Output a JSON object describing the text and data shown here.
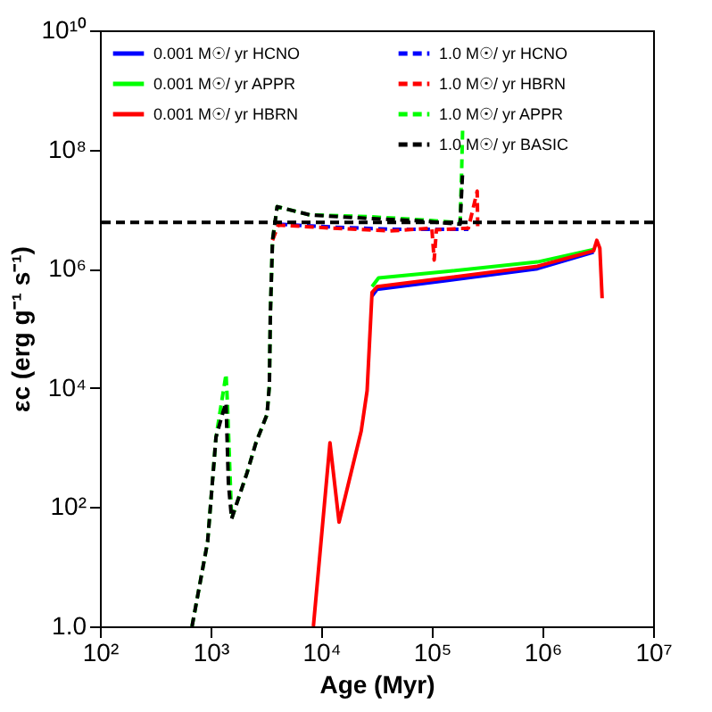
{
  "chart_data": {
    "type": "line",
    "xlabel": "Age (Myr)",
    "ylabel": "εc (erg g⁻¹ s⁻¹)",
    "log": "xy",
    "xlim": [
      100,
      10000000
    ],
    "ylim": [
      1,
      10000000000
    ],
    "xticks": [
      {
        "value": 100,
        "label": "10²"
      },
      {
        "value": 1000,
        "label": "10³"
      },
      {
        "value": 10000,
        "label": "10⁴"
      },
      {
        "value": 100000,
        "label": "10⁵"
      },
      {
        "value": 1000000,
        "label": "10⁶"
      },
      {
        "value": 10000000,
        "label": "10⁷"
      }
    ],
    "yticks": [
      {
        "value": 1,
        "label": "1.0"
      },
      {
        "value": 100,
        "label": "10²"
      },
      {
        "value": 10000,
        "label": "10⁴"
      },
      {
        "value": 1000000,
        "label": "10⁶"
      },
      {
        "value": 100000000,
        "label": "10⁸"
      },
      {
        "value": 10000000000,
        "label": "10¹⁰"
      }
    ],
    "grid": false,
    "legend": "top left",
    "series": [
      {
        "name": "0.001 M☉/ yr HCNO",
        "color": "#0000ff",
        "line_style": "solid",
        "x": [
          28800,
          32000,
          135000,
          900000,
          2900000
        ],
        "values": [
          350000,
          450000,
          630000,
          1000000,
          1900000
        ]
      },
      {
        "name": "0.001 M☉/ yr APPR",
        "color": "#00ff00",
        "line_style": "solid",
        "x": [
          28800,
          33000,
          135000,
          900000,
          2900000
        ],
        "values": [
          500000,
          700000,
          900000,
          1300000,
          2100000
        ]
      },
      {
        "name": "0.001 M☉/ yr HBRN",
        "color": "#ff0000",
        "line_style": "solid",
        "x": [
          8500,
          12000,
          14500,
          23000,
          26000,
          28800,
          32000,
          135000,
          900000,
          2900000,
          3100000,
          3300000,
          3460000
        ],
        "values": [
          1,
          1200,
          56,
          1900,
          9000,
          400000,
          500000,
          700000,
          1100000,
          2000000,
          3000000,
          2200000,
          320000
        ]
      },
      {
        "name": "1.0 M☉/ yr HCNO",
        "color": "#0000ff",
        "line_style": "dashed",
        "x": [
          4100,
          12600,
          42000,
          100000,
          214000
        ],
        "values": [
          5600000,
          5000000,
          4600000,
          4600000,
          4600000
        ]
      },
      {
        "name": "1.0 M☉/ yr HBRN",
        "color": "#ff0000",
        "line_style": "dashed",
        "x": [
          3630,
          4100,
          12600,
          42000,
          100000,
          105000,
          110000,
          214000,
          257000,
          260000
        ],
        "values": [
          3000000,
          5400000,
          4800000,
          4300000,
          4800000,
          1400000,
          4500000,
          4800000,
          20000000,
          4800000
        ]
      },
      {
        "name": "1.0 M☉/ yr APPR",
        "color": "#00ff00",
        "line_style": "dashed",
        "x": [
          680,
          940,
          1120,
          1380,
          1420,
          1550,
          2140,
          2570,
          3240,
          3400,
          3470,
          3630,
          4000,
          7900,
          26000,
          83000,
          180000,
          186000,
          190000
        ],
        "values": [
          1,
          26,
          1500,
          17000,
          5600,
          64,
          380,
          1200,
          3600,
          11000,
          170000,
          3000000,
          11000000,
          8000000,
          7500000,
          6600000,
          5900000,
          45000000,
          240000000
        ]
      },
      {
        "name": "1.0 M☉/ yr BASIC",
        "color": "#000000",
        "line_style": "dashed",
        "x": [
          680,
          940,
          1120,
          1300,
          1380,
          1450,
          1550,
          2140,
          2570,
          3240,
          3400,
          3470,
          3630,
          4000,
          7900,
          26000,
          83000,
          180000,
          190000
        ],
        "values": [
          1,
          26,
          1500,
          4000,
          5600,
          250,
          64,
          380,
          1200,
          3600,
          11000,
          170000,
          3000000,
          11000000,
          8000000,
          7000000,
          6300000,
          5600000,
          45000000
        ]
      }
    ],
    "ref_lines": [
      {
        "axis": "y",
        "value": 6000000,
        "color": "#000000",
        "line_style": "dashed"
      }
    ]
  }
}
